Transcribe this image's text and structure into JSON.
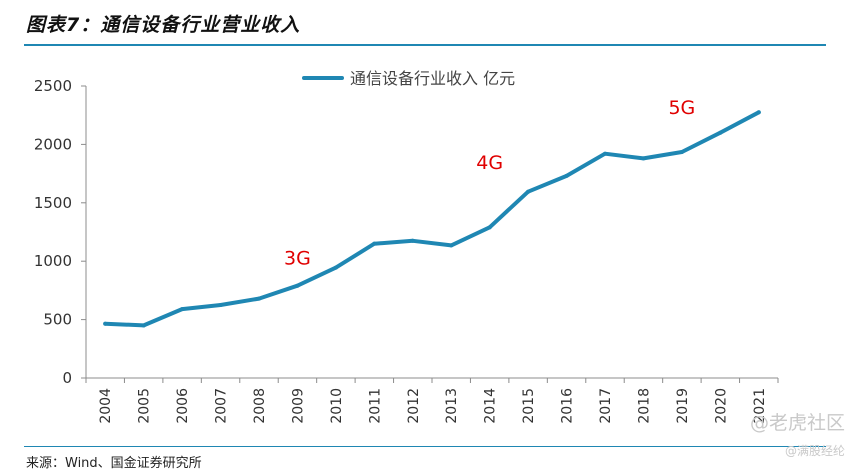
{
  "figure": {
    "title": "图表7：通信设备行业营业收入",
    "source": "来源：Wind、国金证券研究所"
  },
  "watermark": {
    "brand": "@老虎社区",
    "handle": "@满股经纶"
  },
  "chart_data": {
    "type": "line",
    "x": [
      "2004",
      "2005",
      "2006",
      "2007",
      "2008",
      "2009",
      "2010",
      "2011",
      "2012",
      "2013",
      "2014",
      "2015",
      "2016",
      "2017",
      "2018",
      "2019",
      "2020",
      "2021"
    ],
    "series": [
      {
        "name": "通信设备行业收入 亿元",
        "values": [
          465,
          450,
          590,
          625,
          680,
          790,
          945,
          1150,
          1175,
          1135,
          1290,
          1595,
          1730,
          1920,
          1880,
          1935,
          2100,
          2275
        ],
        "color": "#1f87b3"
      }
    ],
    "ylim": [
      0,
      2500
    ],
    "yticks": [
      0,
      500,
      1000,
      1500,
      2000,
      2500
    ],
    "annotations": [
      {
        "text": "3G",
        "x": "2009",
        "y": 970,
        "color": "#e00000"
      },
      {
        "text": "4G",
        "x": "2014",
        "y": 1790,
        "color": "#e00000"
      },
      {
        "text": "5G",
        "x": "2019",
        "y": 2260,
        "color": "#e00000"
      }
    ],
    "legend": "top-center",
    "grid": false
  }
}
